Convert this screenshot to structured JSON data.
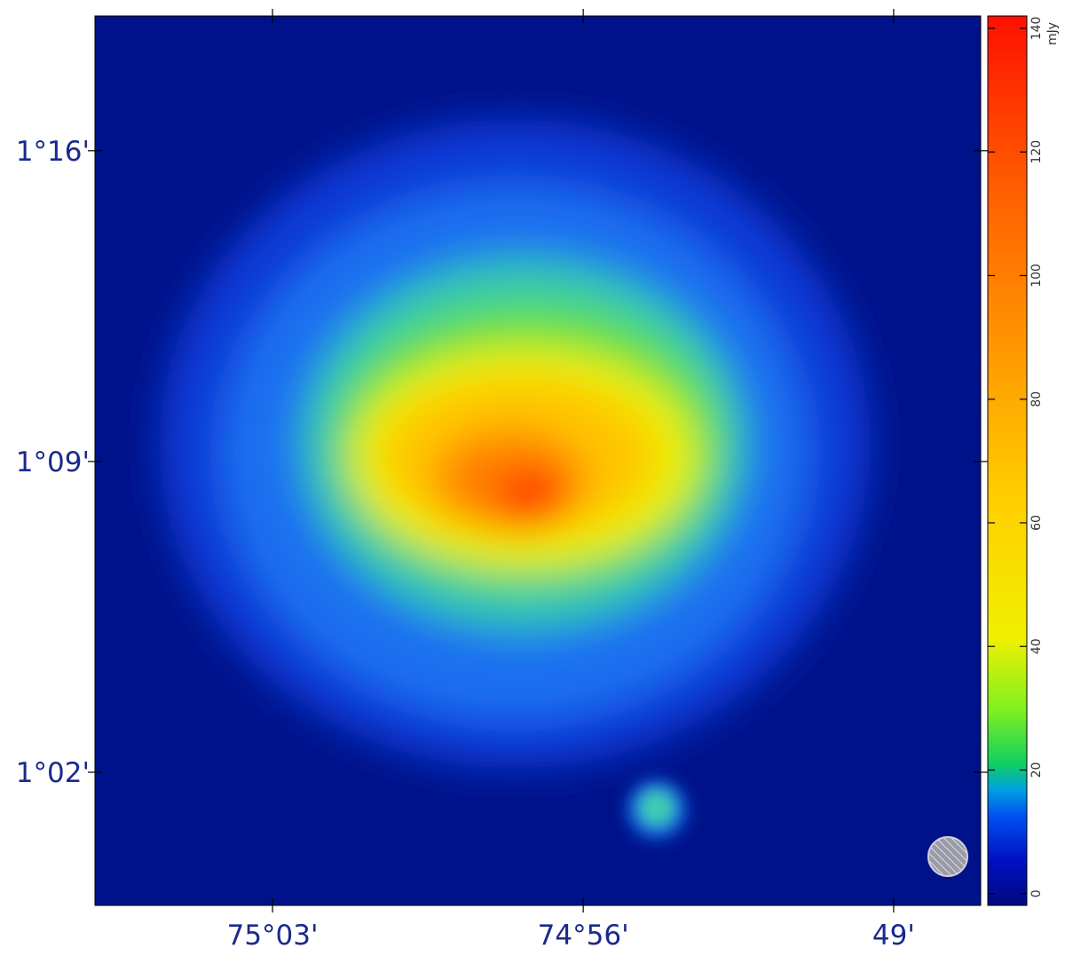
{
  "chart_data": {
    "type": "heatmap",
    "xlim": [
      75.1167,
      74.784
    ],
    "xticks": [
      {
        "value": 75.05,
        "label": "75°03'"
      },
      {
        "value": 74.9333,
        "label": "74°56'"
      },
      {
        "value": 74.8167,
        "label": "49'"
      }
    ],
    "ylim": [
      0.9833,
      1.3173
    ],
    "yticks": [
      {
        "value": 1.2667,
        "label": "1°16'"
      },
      {
        "value": 1.15,
        "label": "1°09'"
      },
      {
        "value": 1.0333,
        "label": "1°02'"
      }
    ],
    "colorbar": {
      "label": "mJy",
      "lim": [
        -1.9,
        142
      ],
      "ticks": [
        0,
        20,
        40,
        60,
        80,
        100,
        120,
        140
      ]
    }
  }
}
